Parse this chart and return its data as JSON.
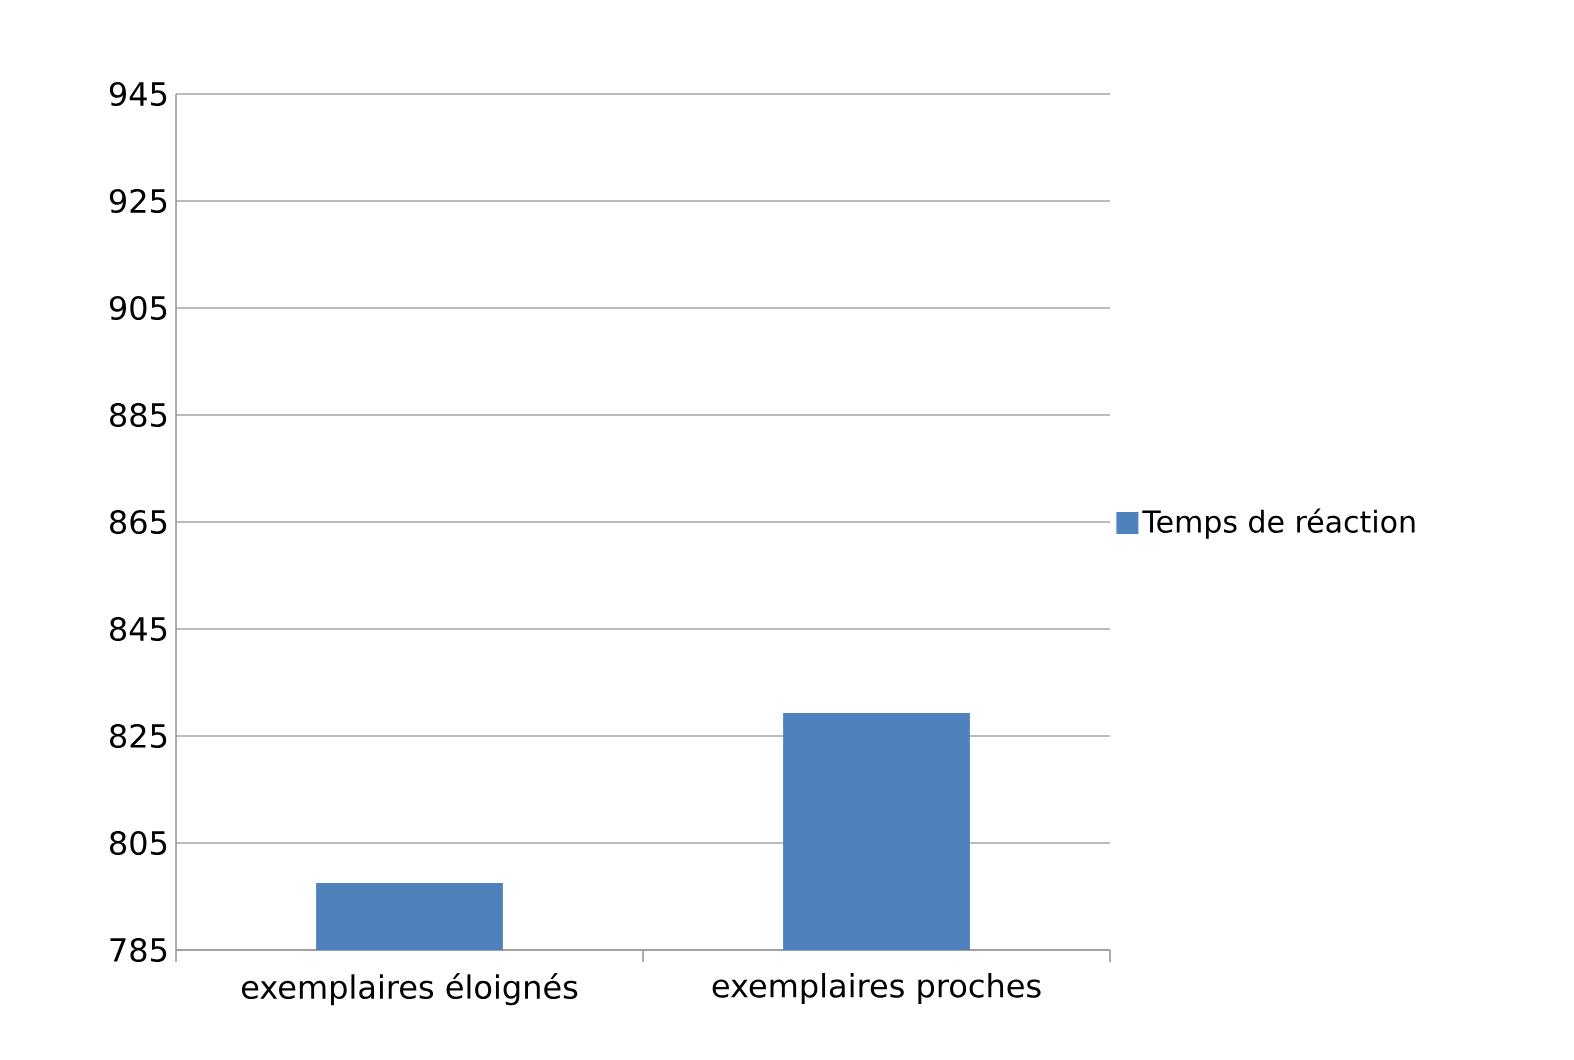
{
  "chart_data": {
    "type": "bar",
    "categories": [
      "exemplaires éloignés",
      "exemplaires proches"
    ],
    "series": [
      {
        "name": "Temps de réaction",
        "color": "#4f81bd",
        "values": [
          797.5,
          829.3
        ]
      }
    ],
    "ylim": [
      785,
      945
    ],
    "yticks": [
      785,
      805,
      825,
      845,
      865,
      885,
      905,
      925,
      945
    ],
    "grid": "y",
    "legend": "right"
  }
}
